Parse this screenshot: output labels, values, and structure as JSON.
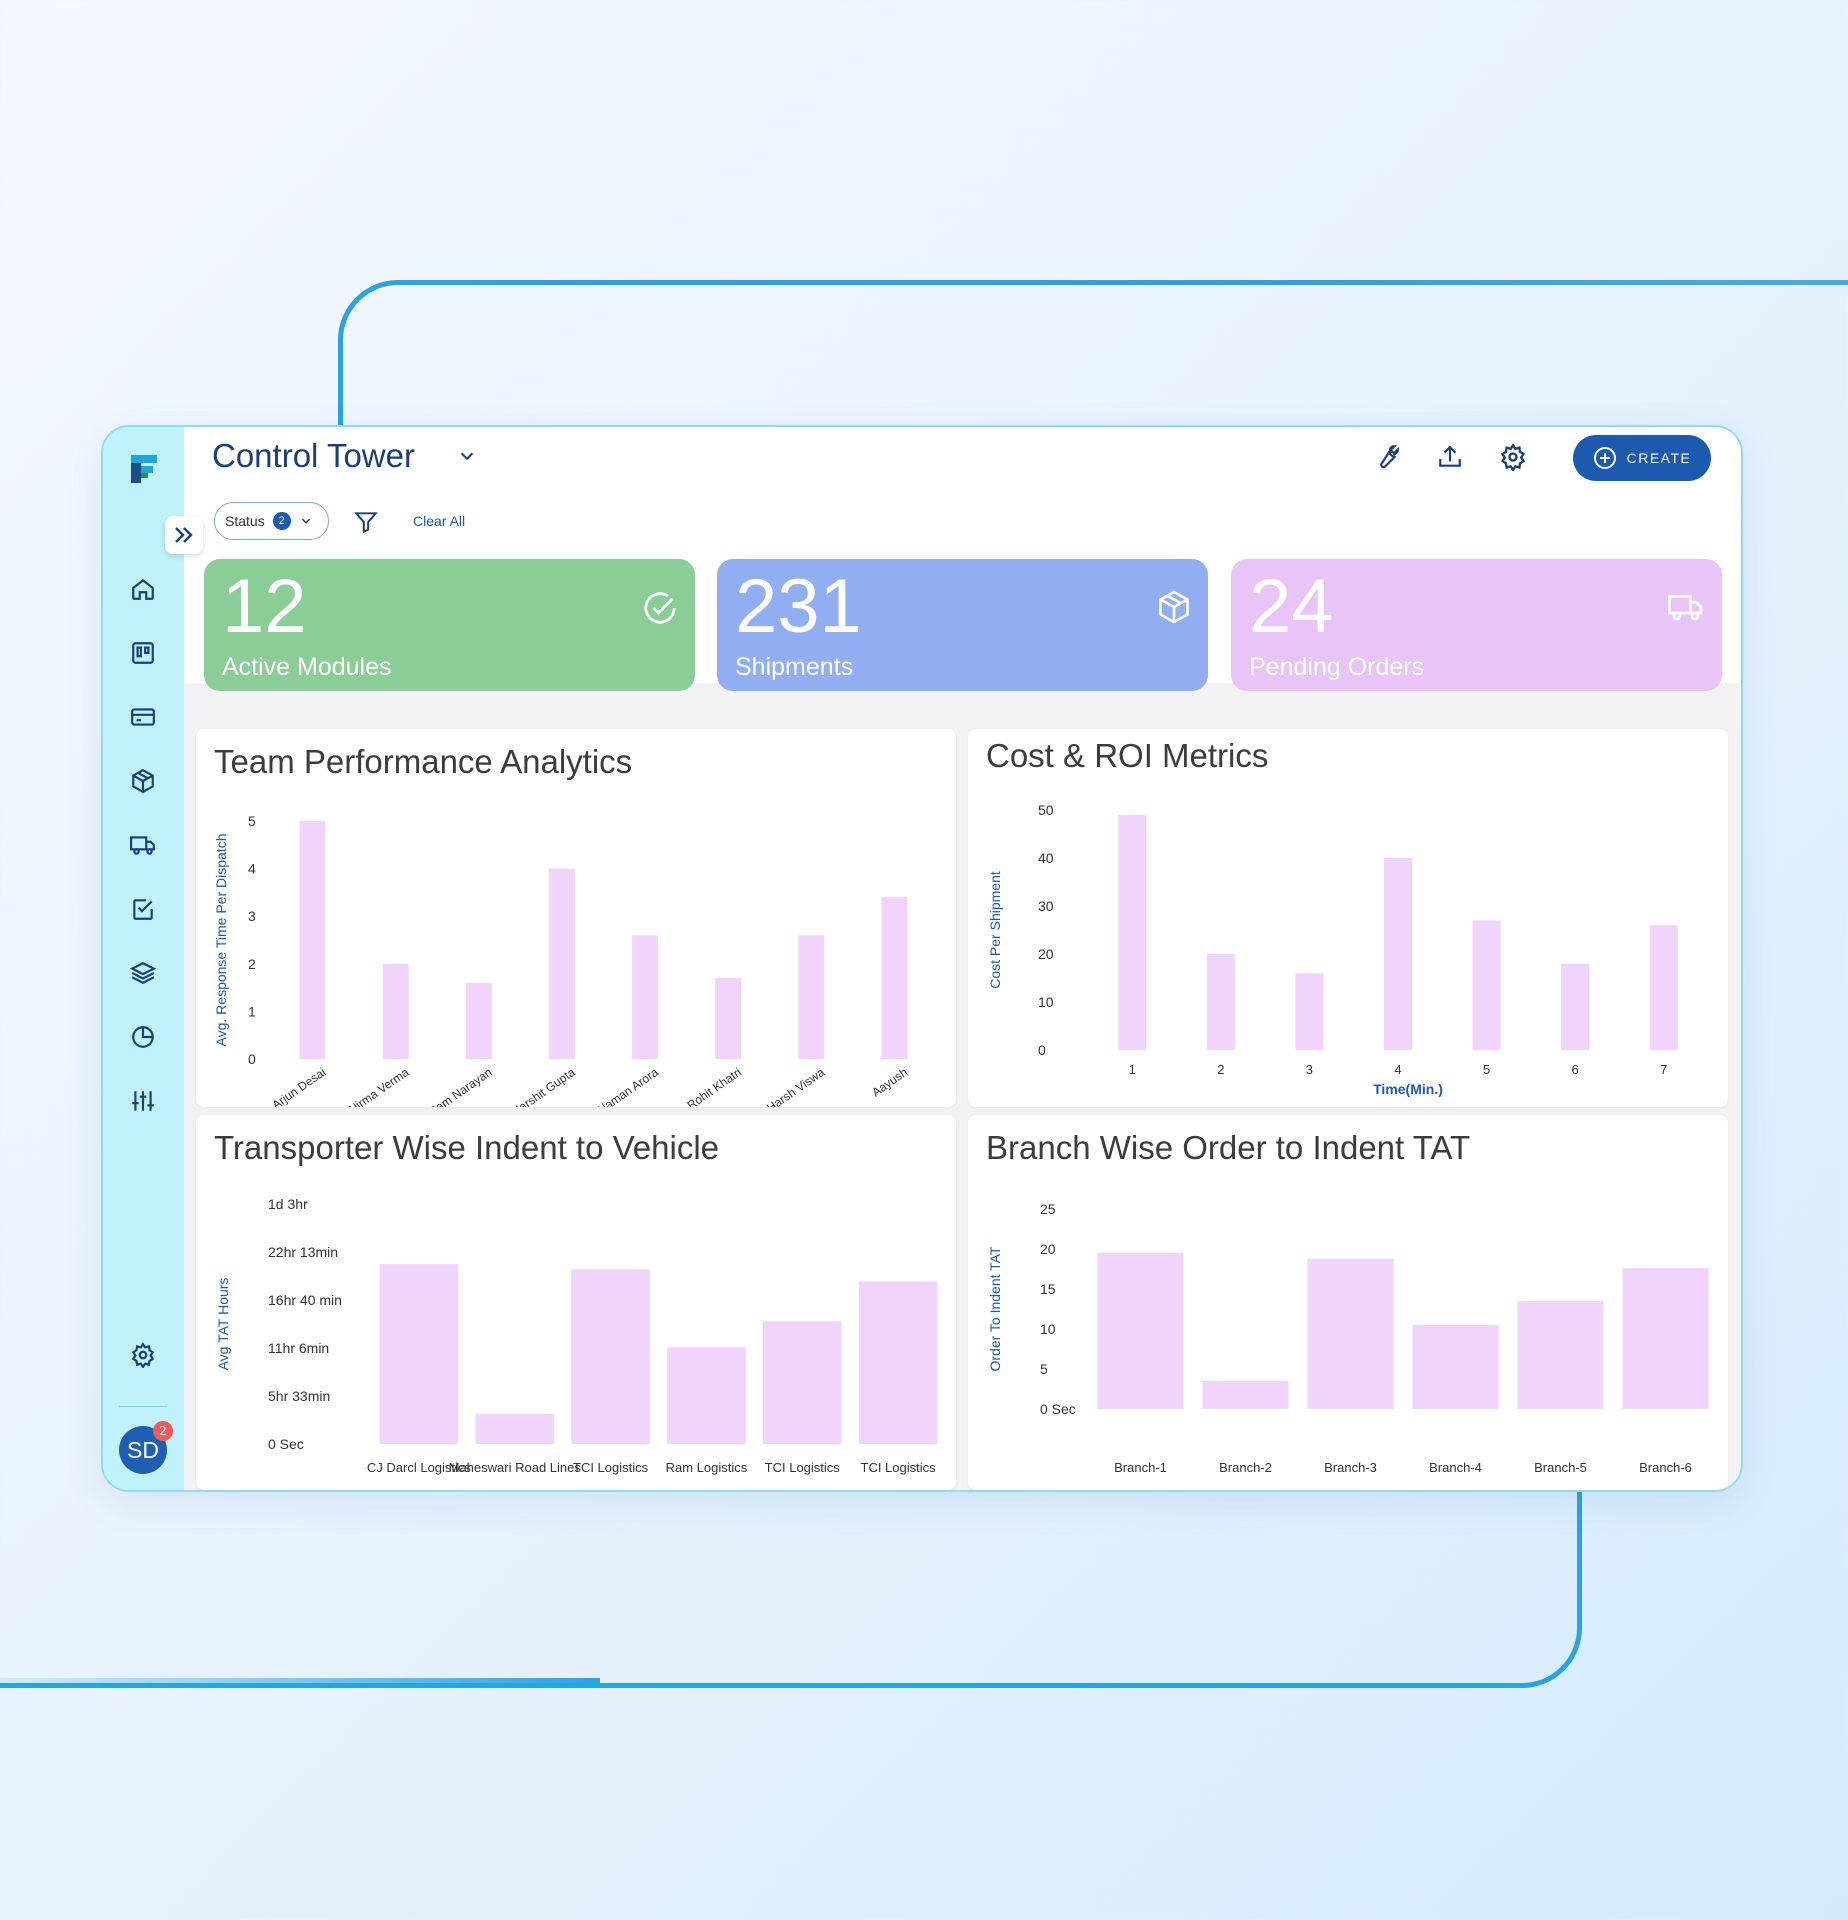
{
  "header": {
    "title": "Control Tower",
    "create_label": "CREATE",
    "status_filter_label": "Status",
    "status_filter_count": "2",
    "clear_all_label": "Clear All"
  },
  "user": {
    "initials": "SD",
    "notification_count": "2"
  },
  "kpis": [
    {
      "value": "12",
      "label": "Active Modules",
      "color": "#8acd97"
    },
    {
      "value": "231",
      "label": "Shipments",
      "color": "#91aef2"
    },
    {
      "value": "24",
      "label": "Pending Orders",
      "color": "#e9c4f7"
    }
  ],
  "colors": {
    "bar": "#f1d4fb",
    "axis_label": "#1c5ab0",
    "accent": "#1c5ab0"
  },
  "chart_data": [
    {
      "type": "bar",
      "title": "Team Performance Analytics",
      "ylabel": "Avg. Response Time Per Dispatch",
      "xlabel": "",
      "categories": [
        "Arjun Desai",
        "Nirma Verma",
        "Ram Narayan",
        "Harshit Gupta",
        "Naman Arora",
        "Rohit Khatri",
        "Harsh Viswa",
        "Aayush"
      ],
      "values": [
        5.0,
        2.0,
        1.6,
        4.0,
        2.6,
        1.7,
        2.6,
        3.4
      ],
      "yticks": [
        "0",
        "1",
        "2",
        "3",
        "4",
        "5"
      ],
      "ylim": [
        0,
        5
      ]
    },
    {
      "type": "bar",
      "title": "Cost & ROI Metrics",
      "ylabel": "Cost Per Shipment",
      "xlabel": "Time(Min.)",
      "categories": [
        "1",
        "2",
        "3",
        "4",
        "5",
        "6",
        "7"
      ],
      "values": [
        49,
        20,
        16,
        40,
        27,
        18,
        26
      ],
      "yticks": [
        "0",
        "10",
        "20",
        "30",
        "40",
        "50"
      ],
      "ylim": [
        0,
        50
      ]
    },
    {
      "type": "bar",
      "title": "Transporter Wise Indent to Vehicle",
      "ylabel": "Avg TAT Hours",
      "xlabel": "",
      "categories": [
        "CJ Darcl Logistics",
        "Maheswari Road Lines",
        "TCI Logistics",
        "Ram Logistics",
        "TCI Logistics",
        "TCI Logistics"
      ],
      "values": [
        20.8,
        3.5,
        20.2,
        11.2,
        14.2,
        18.8
      ],
      "yticks": [
        "0 Sec",
        "5hr 33min",
        "11hr 6min",
        "16hr 40 min",
        "22hr 13min",
        "1d 3hr"
      ],
      "ylim": [
        0,
        27.75
      ]
    },
    {
      "type": "bar",
      "title": "Branch Wise Order to Indent TAT",
      "ylabel": "Order To Indent TAT",
      "xlabel": "",
      "categories": [
        "Branch-1",
        "Branch-2",
        "Branch-3",
        "Branch-4",
        "Branch-5",
        "Branch-6"
      ],
      "values": [
        19.5,
        3.5,
        18.8,
        10.5,
        13.5,
        17.6
      ],
      "yticks": [
        "0 Sec",
        "5",
        "10",
        "15",
        "20",
        "25"
      ],
      "ylim": [
        0,
        25
      ]
    }
  ]
}
